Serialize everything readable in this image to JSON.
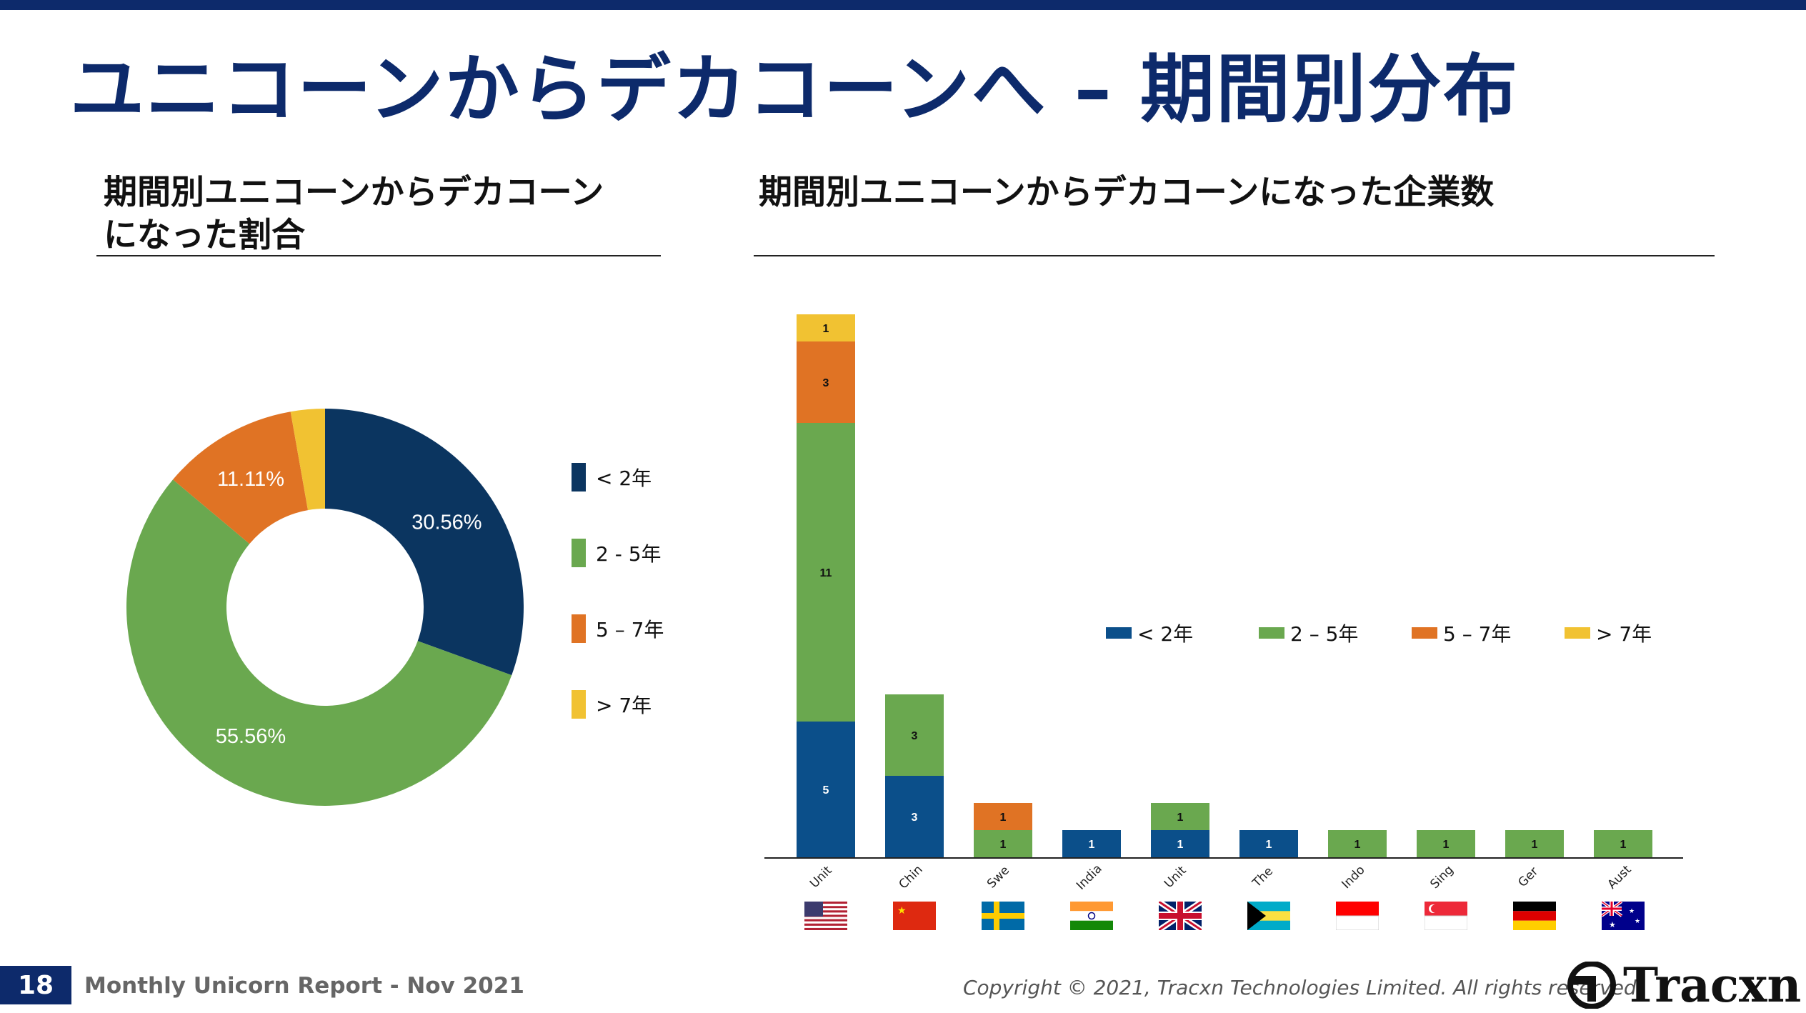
{
  "page": {
    "title": "ユニコーンからデカコーンへ – 期間別分布",
    "page_number": "18",
    "report": "Monthly Unicorn Report  - Nov 2021",
    "copyright": "Copyright © 2021, Tracxn Technologies Limited. All rights reserved.",
    "logo_text": "Tracxn"
  },
  "colors": {
    "lt2": "#0b3560",
    "y2_5": "#6aa84f",
    "y5_7": "#e07324",
    "gt7": "#f1c232",
    "title": "#0d2a6b",
    "bar_lt2": "#0b4f8a"
  },
  "charts": {
    "pie_title": "期間別ユニコーンからデカコーン\nになった割合",
    "bar_title": "期間別ユニコーンからデカコーンになった企業数"
  },
  "chart_data": [
    {
      "type": "pie",
      "title": "期間別ユニコーンからデカコーンになった割合",
      "labels": [
        "< 2年",
        "2 - 5年",
        "5 – 7年",
        "> 7年"
      ],
      "values": [
        30.56,
        55.56,
        11.11,
        2.78
      ],
      "data_labels": [
        "30.56%",
        "55.56%",
        "11.11%",
        ""
      ],
      "legend": "right"
    },
    {
      "type": "bar",
      "stacked": true,
      "title": "期間別ユニコーンからデカコーンになった企業数",
      "categories": [
        "Unit",
        "Chin",
        "Swe",
        "India",
        "Unit",
        "The",
        "Indo",
        "Sing",
        "Ger",
        "Aust"
      ],
      "series": [
        {
          "name": "< 2年",
          "values": [
            5,
            3,
            0,
            1,
            1,
            1,
            0,
            0,
            0,
            0
          ]
        },
        {
          "name": "2 – 5年",
          "values": [
            11,
            3,
            1,
            0,
            1,
            0,
            1,
            1,
            1,
            1
          ]
        },
        {
          "name": "5 – 7年",
          "values": [
            3,
            0,
            1,
            0,
            0,
            0,
            0,
            0,
            0,
            0
          ]
        },
        {
          "name": "> 7年",
          "values": [
            1,
            0,
            0,
            0,
            0,
            0,
            0,
            0,
            0,
            0
          ]
        }
      ],
      "flags": [
        "flag-us-icon",
        "flag-cn-icon",
        "flag-se-icon",
        "flag-in-icon",
        "flag-gb-icon",
        "flag-bs-icon",
        "flag-id-icon",
        "flag-sg-icon",
        "flag-de-icon",
        "flag-au-icon"
      ],
      "legend": "center-right"
    }
  ]
}
